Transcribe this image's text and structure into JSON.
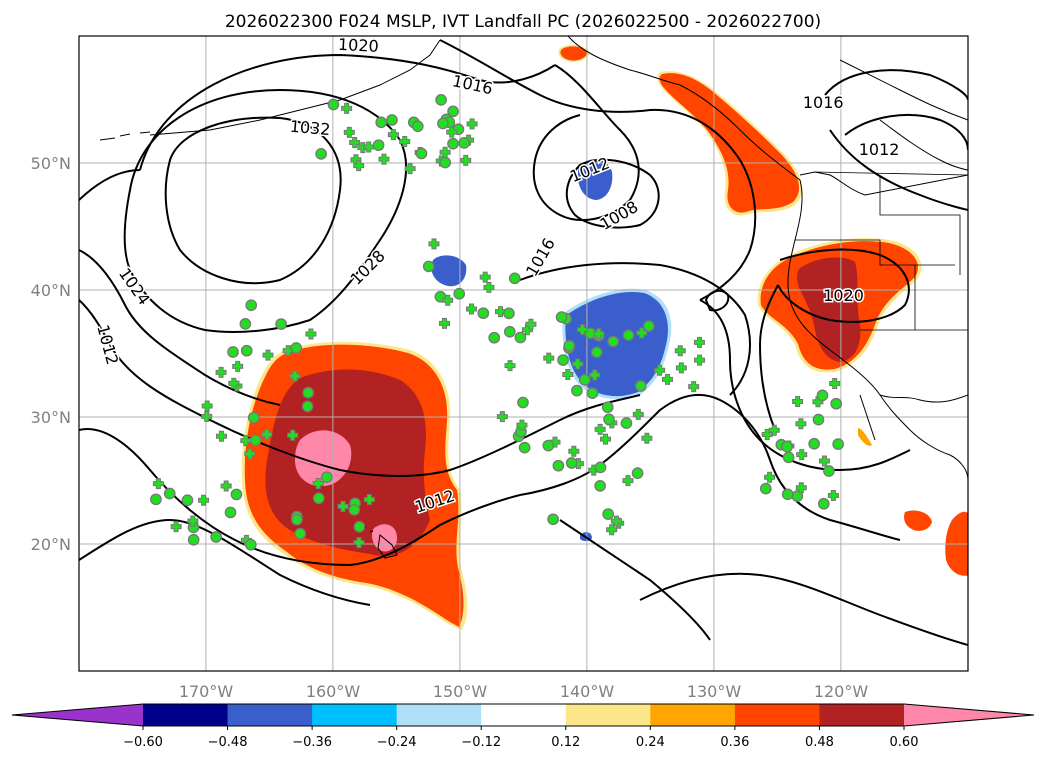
{
  "chart_data": {
    "type": "map",
    "title": "2026022300 F024 MSLP, IVT Landfall PC (2026022500 - 2026022700)",
    "lon_range": [
      -180,
      -110
    ],
    "lat_range": [
      10,
      60
    ],
    "lon_ticks": [
      {
        "value": -170,
        "label": "170°W"
      },
      {
        "value": -160,
        "label": "160°W"
      },
      {
        "value": -150,
        "label": "150°W"
      },
      {
        "value": -140,
        "label": "140°W"
      },
      {
        "value": -130,
        "label": "130°W"
      },
      {
        "value": -120,
        "label": "120°W"
      }
    ],
    "lat_ticks": [
      {
        "value": 20,
        "label": "20°N"
      },
      {
        "value": 30,
        "label": "30°N"
      },
      {
        "value": 40,
        "label": "40°N"
      },
      {
        "value": 50,
        "label": "50°N"
      }
    ],
    "colorbar": {
      "colors": [
        "#9933cc",
        "#00008b",
        "#3a5fcd",
        "#00bfff",
        "#b0e0f8",
        "#ffffff",
        "#fde68a",
        "#ffa500",
        "#ff4500",
        "#b22222",
        "#ff88aa"
      ],
      "ticks": [
        "−0.60",
        "−0.48",
        "−0.36",
        "−0.24",
        "−0.12",
        "0.12",
        "0.24",
        "0.36",
        "0.48",
        "0.60"
      ]
    },
    "isobar_labels": [
      {
        "text": "1020",
        "lon": -158.0,
        "lat": 59.3,
        "rot": 3
      },
      {
        "text": "1016",
        "lon": -149.0,
        "lat": 56.2,
        "rot": 12
      },
      {
        "text": "1032",
        "lon": -161.8,
        "lat": 52.8,
        "rot": 5
      },
      {
        "text": "1024",
        "lon": -175.6,
        "lat": 40.3,
        "rot": 55
      },
      {
        "text": "1012",
        "lon": -177.7,
        "lat": 35.7,
        "rot": 75
      },
      {
        "text": "1028",
        "lon": -157.3,
        "lat": 41.8,
        "rot": -45
      },
      {
        "text": "1012",
        "lon": -139.8,
        "lat": 49.5,
        "rot": -22
      },
      {
        "text": "1008",
        "lon": -137.5,
        "lat": 45.9,
        "rot": -30
      },
      {
        "text": "1016",
        "lon": -143.7,
        "lat": 42.6,
        "rot": -60
      },
      {
        "text": "1012",
        "lon": -152.0,
        "lat": 23.4,
        "rot": -18
      },
      {
        "text": "1016",
        "lon": -121.4,
        "lat": 54.8,
        "rot": 0
      },
      {
        "text": "1012",
        "lon": -117.0,
        "lat": 51.1,
        "rot": 0
      },
      {
        "text": "1020",
        "lon": -119.8,
        "lat": 39.6,
        "rot": 0
      }
    ],
    "ensemble_markers_count": 190
  }
}
